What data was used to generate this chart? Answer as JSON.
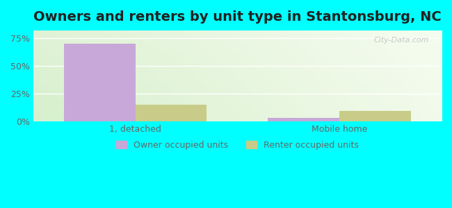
{
  "title": "Owners and renters by unit type in Stantonsburg, NC",
  "categories": [
    "1, detached",
    "Mobile home"
  ],
  "owner_values": [
    70.0,
    3.0
  ],
  "renter_values": [
    15.0,
    9.0
  ],
  "owner_color": "#c8a8d8",
  "renter_color": "#c8cc88",
  "background_outer": "#00ffff",
  "yticks": [
    0,
    25,
    50,
    75
  ],
  "ytick_labels": [
    "0%",
    "25%",
    "50%",
    "75%"
  ],
  "ylim": [
    0,
    82
  ],
  "bar_width": 0.35,
  "legend_owner": "Owner occupied units",
  "legend_renter": "Renter occupied units",
  "watermark": "City-Data.com",
  "title_fontsize": 14,
  "tick_fontsize": 9,
  "legend_fontsize": 9
}
